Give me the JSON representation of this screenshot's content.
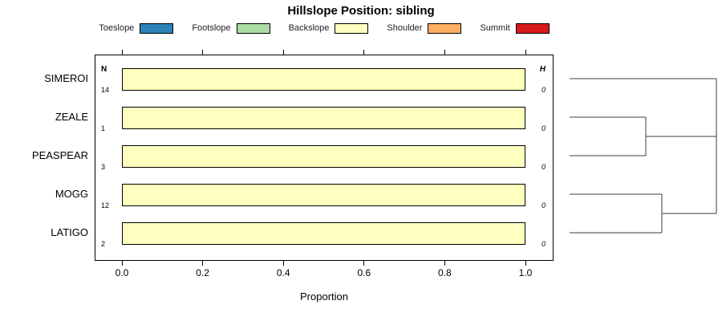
{
  "title": "Hillslope Position: sibling",
  "legend": {
    "items": [
      {
        "label": "Toeslope",
        "color": "#2B83BA"
      },
      {
        "label": "Footslope",
        "color": "#ABDDA4"
      },
      {
        "label": "Backslope",
        "color": "#FFFFBF"
      },
      {
        "label": "Shoulder",
        "color": "#FDAE61"
      },
      {
        "label": "Summit",
        "color": "#D7191C"
      }
    ]
  },
  "chart_data": {
    "type": "bar",
    "orientation": "horizontal-stacked",
    "title": "Hillslope Position: sibling",
    "xlabel": "Proportion",
    "xlim": [
      0,
      1
    ],
    "x_ticks": [
      0.0,
      0.2,
      0.4,
      0.6,
      0.8,
      1.0
    ],
    "x_tick_labels": [
      "0.0",
      "0.2",
      "0.4",
      "0.6",
      "0.8",
      "1.0"
    ],
    "grid": false,
    "legend_position": "top",
    "columns": {
      "n_header": "N",
      "h_header": "H"
    },
    "rows": [
      {
        "label": "SIMEROI",
        "n": "14",
        "h": "0",
        "segments": [
          {
            "class": "Backslope",
            "proportion": 1.0
          }
        ]
      },
      {
        "label": "ZEALE",
        "n": "1",
        "h": "0",
        "segments": [
          {
            "class": "Backslope",
            "proportion": 1.0
          }
        ]
      },
      {
        "label": "PEASPEAR",
        "n": "3",
        "h": "0",
        "segments": [
          {
            "class": "Backslope",
            "proportion": 1.0
          }
        ]
      },
      {
        "label": "MOGG",
        "n": "12",
        "h": "0",
        "segments": [
          {
            "class": "Backslope",
            "proportion": 1.0
          }
        ]
      },
      {
        "label": "LATIGO",
        "n": "2",
        "h": "0",
        "segments": [
          {
            "class": "Backslope",
            "proportion": 1.0
          }
        ]
      }
    ]
  },
  "dendrogram": {
    "topology": "((ZEALE,PEASPEAR),(MOGG,LATIGO),SIMEROI) joined at root; all merge heights ~0",
    "leaf_order": [
      "SIMEROI",
      "ZEALE",
      "PEASPEAR",
      "MOGG",
      "LATIGO"
    ],
    "segments": [
      [
        20,
        30,
        203,
        30
      ],
      [
        20,
        78,
        115,
        78
      ],
      [
        20,
        126,
        115,
        126
      ],
      [
        115,
        78,
        115,
        126
      ],
      [
        115,
        102,
        203,
        102
      ],
      [
        20,
        174,
        135,
        174
      ],
      [
        20,
        222,
        135,
        222
      ],
      [
        135,
        174,
        135,
        222
      ],
      [
        135,
        198,
        203,
        198
      ],
      [
        203,
        30,
        203,
        198
      ]
    ]
  }
}
